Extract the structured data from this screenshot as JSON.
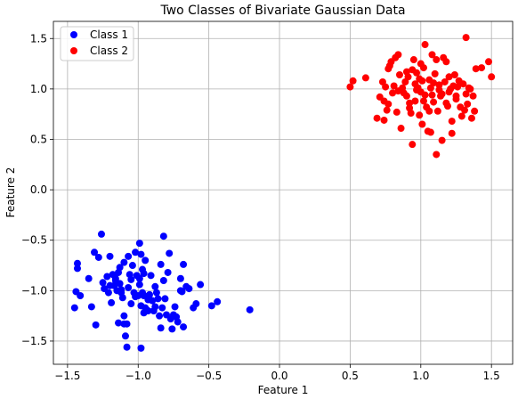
{
  "chart_data": {
    "type": "scatter",
    "title": "Two Classes of Bivariate Gaussian Data",
    "xlabel": "Feature 1",
    "ylabel": "Feature 2",
    "xlim": [
      -1.6,
      1.65
    ],
    "ylim": [
      -1.73,
      1.67
    ],
    "xticks": [
      -1.5,
      -1.0,
      -0.5,
      0.0,
      0.5,
      1.0,
      1.5
    ],
    "yticks": [
      -1.5,
      -1.0,
      -0.5,
      0.0,
      0.5,
      1.0,
      1.5
    ],
    "xtick_labels": [
      "−1.5",
      "−1.0",
      "−0.5",
      "0.0",
      "0.5",
      "1.0",
      "1.5"
    ],
    "ytick_labels": [
      "−1.5",
      "−1.0",
      "−0.5",
      "0.0",
      "0.5",
      "1.0",
      "1.5"
    ],
    "grid": true,
    "legend_position": "top-left",
    "series": [
      {
        "name": "Class 1",
        "color": "#0000ff",
        "points": [
          [
            -1.45,
            -1.17
          ],
          [
            -1.44,
            -1.01
          ],
          [
            -1.43,
            -0.73
          ],
          [
            -1.43,
            -0.78
          ],
          [
            -1.41,
            -1.05
          ],
          [
            -1.35,
            -0.88
          ],
          [
            -1.33,
            -1.16
          ],
          [
            -1.31,
            -0.62
          ],
          [
            -1.3,
            -1.34
          ],
          [
            -1.28,
            -0.67
          ],
          [
            -1.26,
            -0.44
          ],
          [
            -1.25,
            -0.92
          ],
          [
            -1.24,
            -0.98
          ],
          [
            -1.22,
            -0.86
          ],
          [
            -1.21,
            -1.02
          ],
          [
            -1.2,
            -0.66
          ],
          [
            -1.19,
            -1.12
          ],
          [
            -1.18,
            -0.84
          ],
          [
            -1.17,
            -0.95
          ],
          [
            -1.16,
            -0.9
          ],
          [
            -1.15,
            -1.0
          ],
          [
            -1.14,
            -0.82
          ],
          [
            -1.14,
            -1.32
          ],
          [
            -1.13,
            -0.77
          ],
          [
            -1.13,
            -0.93
          ],
          [
            -1.12,
            -0.99
          ],
          [
            -1.11,
            -1.07
          ],
          [
            -1.1,
            -1.33
          ],
          [
            -1.1,
            -0.72
          ],
          [
            -1.1,
            -1.25
          ],
          [
            -1.09,
            -1.45
          ],
          [
            -1.08,
            -1.33
          ],
          [
            -1.08,
            -1.56
          ],
          [
            -1.07,
            -0.66
          ],
          [
            -1.06,
            -0.84
          ],
          [
            -1.05,
            -0.89
          ],
          [
            -1.05,
            -1.13
          ],
          [
            -1.04,
            -0.75
          ],
          [
            -1.03,
            -1.02
          ],
          [
            -1.02,
            -0.62
          ],
          [
            -1.01,
            -0.85
          ],
          [
            -1.0,
            -1.05
          ],
          [
            -0.99,
            -0.53
          ],
          [
            -0.99,
            -0.88
          ],
          [
            -0.99,
            -0.94
          ],
          [
            -0.98,
            -1.57
          ],
          [
            -0.98,
            -0.64
          ],
          [
            -0.98,
            -1.15
          ],
          [
            -0.97,
            -0.79
          ],
          [
            -0.97,
            -1.02
          ],
          [
            -0.96,
            -1.22
          ],
          [
            -0.96,
            -0.83
          ],
          [
            -0.96,
            -1.05
          ],
          [
            -0.95,
            -1.17
          ],
          [
            -0.95,
            -0.7
          ],
          [
            -0.94,
            -1.19
          ],
          [
            -0.93,
            -1.09
          ],
          [
            -0.92,
            -1.04
          ],
          [
            -0.91,
            -0.85
          ],
          [
            -0.9,
            -1.1
          ],
          [
            -0.89,
            -1.2
          ],
          [
            -0.88,
            -1.16
          ],
          [
            -0.87,
            -1.02
          ],
          [
            -0.86,
            -1.08
          ],
          [
            -0.85,
            -1.25
          ],
          [
            -0.84,
            -1.37
          ],
          [
            -0.84,
            -0.74
          ],
          [
            -0.83,
            -1.17
          ],
          [
            -0.82,
            -0.9
          ],
          [
            -0.82,
            -0.46
          ],
          [
            -0.81,
            -1.08
          ],
          [
            -0.8,
            -1.24
          ],
          [
            -0.79,
            -0.82
          ],
          [
            -0.78,
            -0.63
          ],
          [
            -0.77,
            -1.28
          ],
          [
            -0.76,
            -1.38
          ],
          [
            -0.75,
            -1.24
          ],
          [
            -0.74,
            -1.16
          ],
          [
            -0.73,
            -1.26
          ],
          [
            -0.72,
            -1.31
          ],
          [
            -0.7,
            -0.88
          ],
          [
            -0.69,
            -1.01
          ],
          [
            -0.68,
            -1.36
          ],
          [
            -0.68,
            -0.74
          ],
          [
            -0.66,
            -0.96
          ],
          [
            -0.64,
            -0.98
          ],
          [
            -0.61,
            -1.17
          ],
          [
            -0.59,
            -1.13
          ],
          [
            -0.56,
            -0.94
          ],
          [
            -0.48,
            -1.15
          ],
          [
            -0.44,
            -1.11
          ],
          [
            -0.21,
            -1.19
          ],
          [
            -0.7,
            -1.0
          ],
          [
            -1.2,
            -0.95
          ],
          [
            -1.12,
            -1.02
          ],
          [
            -0.93,
            -1.2
          ],
          [
            -1.02,
            -1.06
          ],
          [
            -0.88,
            -0.96
          ],
          [
            -1.07,
            -0.97
          ],
          [
            -1.16,
            -0.88
          ]
        ]
      },
      {
        "name": "Class 2",
        "color": "#ff0000",
        "points": [
          [
            0.5,
            1.02
          ],
          [
            0.52,
            1.08
          ],
          [
            0.61,
            1.11
          ],
          [
            0.69,
            0.71
          ],
          [
            0.71,
            0.92
          ],
          [
            0.73,
            1.07
          ],
          [
            0.74,
            0.88
          ],
          [
            0.74,
            0.69
          ],
          [
            0.75,
            1.02
          ],
          [
            0.76,
            0.79
          ],
          [
            0.77,
            0.85
          ],
          [
            0.77,
            1.2
          ],
          [
            0.78,
            1.23
          ],
          [
            0.79,
            1.27
          ],
          [
            0.8,
            0.96
          ],
          [
            0.81,
            1.03
          ],
          [
            0.82,
            1.31
          ],
          [
            0.83,
            0.77
          ],
          [
            0.84,
            1.34
          ],
          [
            0.85,
            1.14
          ],
          [
            0.86,
            0.61
          ],
          [
            0.87,
            1.01
          ],
          [
            0.88,
            0.96
          ],
          [
            0.89,
            1.07
          ],
          [
            0.9,
            0.93
          ],
          [
            0.91,
            1.12
          ],
          [
            0.92,
            0.81
          ],
          [
            0.93,
            0.76
          ],
          [
            0.94,
            1.19
          ],
          [
            0.94,
            0.45
          ],
          [
            0.95,
            1.29
          ],
          [
            0.96,
            1.05
          ],
          [
            0.96,
            0.88
          ],
          [
            0.97,
            1.16
          ],
          [
            0.98,
            1.01
          ],
          [
            0.99,
            0.74
          ],
          [
            0.99,
            1.1
          ],
          [
            1.0,
            0.97
          ],
          [
            1.01,
            1.08
          ],
          [
            1.01,
            0.65
          ],
          [
            1.02,
            1.21
          ],
          [
            1.03,
            0.94
          ],
          [
            1.03,
            1.44
          ],
          [
            1.04,
            0.82
          ],
          [
            1.05,
            0.58
          ],
          [
            1.06,
            1.09
          ],
          [
            1.07,
            1.01
          ],
          [
            1.07,
            0.57
          ],
          [
            1.08,
            1.34
          ],
          [
            1.09,
            0.87
          ],
          [
            1.1,
            1.15
          ],
          [
            1.11,
            0.35
          ],
          [
            1.11,
            1.29
          ],
          [
            1.12,
            0.78
          ],
          [
            1.13,
            1.04
          ],
          [
            1.14,
            0.93
          ],
          [
            1.15,
            0.49
          ],
          [
            1.16,
            1.31
          ],
          [
            1.17,
            1.07
          ],
          [
            1.18,
            1.27
          ],
          [
            1.19,
            0.83
          ],
          [
            1.2,
            0.97
          ],
          [
            1.21,
            1.0
          ],
          [
            1.22,
            0.68
          ],
          [
            1.22,
            0.56
          ],
          [
            1.23,
            1.03
          ],
          [
            1.24,
            1.14
          ],
          [
            1.25,
            0.93
          ],
          [
            1.26,
            1.02
          ],
          [
            1.27,
            1.08
          ],
          [
            1.28,
            0.82
          ],
          [
            1.29,
            0.73
          ],
          [
            1.3,
            1.05
          ],
          [
            1.31,
            0.79
          ],
          [
            1.32,
            1.51
          ],
          [
            1.33,
            0.85
          ],
          [
            1.34,
            1.01
          ],
          [
            1.35,
            1.0
          ],
          [
            1.36,
            0.71
          ],
          [
            1.37,
            0.93
          ],
          [
            1.38,
            0.78
          ],
          [
            1.39,
            1.2
          ],
          [
            1.43,
            1.21
          ],
          [
            1.48,
            1.27
          ],
          [
            1.5,
            1.12
          ],
          [
            1.13,
            0.99
          ],
          [
            1.02,
            0.88
          ],
          [
            0.9,
            1.17
          ],
          [
            1.18,
            0.86
          ],
          [
            1.09,
            1.06
          ],
          [
            0.97,
            0.99
          ],
          [
            1.25,
            0.9
          ],
          [
            1.06,
            0.78
          ],
          [
            0.84,
            0.98
          ],
          [
            1.2,
            1.12
          ],
          [
            1.0,
            1.25
          ],
          [
            1.15,
            0.95
          ],
          [
            0.92,
            0.86
          ],
          [
            1.32,
            0.95
          ],
          [
            1.08,
            0.94
          ]
        ]
      }
    ]
  }
}
